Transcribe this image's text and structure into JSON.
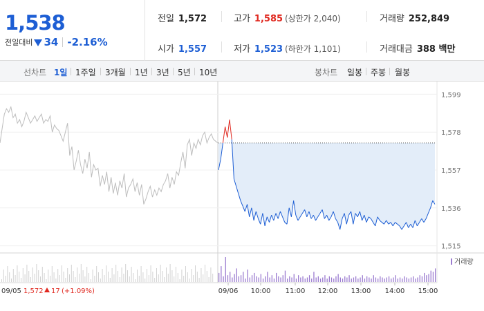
{
  "summary": {
    "price": "1,538",
    "change_label": "전일대비",
    "change_value": "34",
    "change_pct": "-2.16%",
    "direction": "down",
    "prev_close_label": "전일",
    "prev_close": "1,572",
    "open_label": "시가",
    "open": "1,557",
    "high_label": "고가",
    "high": "1,585",
    "upper_limit": "(상한가 2,040)",
    "low_label": "저가",
    "low": "1,523",
    "lower_limit": "(하한가 1,101)",
    "volume_label": "거래량",
    "volume": "252,849",
    "amount_label": "거래대금",
    "amount": "388 백만"
  },
  "toolbar": {
    "line_label": "선차트",
    "line_periods": [
      "1일",
      "1주일",
      "3개월",
      "1년",
      "3년",
      "5년",
      "10년"
    ],
    "active_period": "1일",
    "candle_label": "봉차트",
    "candle_periods": [
      "일봉",
      "주봉",
      "월봉"
    ]
  },
  "colors": {
    "up": "#e0281f",
    "down": "#1d5ed4",
    "fill": "#e3edf9",
    "prev_line": "#bdbdbd"
  },
  "chart_data": {
    "type": "line",
    "y_ticks": [
      "1,599",
      "1,578",
      "1,557",
      "1,536",
      "1,515"
    ],
    "ylim": [
      1511,
      1603
    ],
    "x_ticks": [
      "09/06",
      "10:00",
      "11:00",
      "12:00",
      "13:00",
      "14:00",
      "15:00"
    ],
    "volume_legend": "거래량",
    "prev_close_ref": 1572,
    "prev_day": {
      "label": "09/05",
      "close": "1,572",
      "change": "17",
      "change_pct": "(+1.09%)",
      "values": [
        1572,
        1580,
        1588,
        1591,
        1589,
        1592,
        1586,
        1588,
        1583,
        1585,
        1581,
        1584,
        1589,
        1586,
        1583,
        1585,
        1587,
        1584,
        1586,
        1588,
        1583,
        1585,
        1584,
        1587,
        1578,
        1582,
        1580,
        1579,
        1576,
        1573,
        1578,
        1583,
        1565,
        1570,
        1557,
        1562,
        1568,
        1560,
        1555,
        1563,
        1558,
        1567,
        1553,
        1560,
        1557,
        1558,
        1548,
        1554,
        1549,
        1556,
        1545,
        1553,
        1544,
        1550,
        1543,
        1551,
        1547,
        1555,
        1542,
        1547,
        1549,
        1552,
        1545,
        1550,
        1543,
        1549,
        1538,
        1541,
        1545,
        1548,
        1542,
        1546,
        1543,
        1547,
        1545,
        1549,
        1551,
        1555,
        1547,
        1553,
        1549,
        1556,
        1554,
        1561,
        1567,
        1558,
        1571,
        1574,
        1565,
        1572,
        1569,
        1574,
        1571,
        1576,
        1578,
        1572,
        1575,
        1577,
        1574,
        1573,
        1572
      ]
    },
    "today": {
      "values": [
        1557,
        1563,
        1572,
        1581,
        1575,
        1585,
        1574,
        1552,
        1548,
        1544,
        1540,
        1537,
        1534,
        1538,
        1531,
        1536,
        1529,
        1534,
        1530,
        1527,
        1533,
        1526,
        1531,
        1528,
        1532,
        1529,
        1533,
        1530,
        1534,
        1531,
        1528,
        1527,
        1536,
        1531,
        1540,
        1532,
        1529,
        1531,
        1533,
        1535,
        1531,
        1534,
        1530,
        1532,
        1529,
        1531,
        1533,
        1535,
        1530,
        1532,
        1529,
        1531,
        1534,
        1530,
        1528,
        1524,
        1530,
        1533,
        1527,
        1532,
        1534,
        1527,
        1533,
        1531,
        1534,
        1529,
        1532,
        1528,
        1531,
        1530,
        1528,
        1526,
        1531,
        1529,
        1528,
        1527,
        1529,
        1527,
        1528,
        1526,
        1528,
        1527,
        1526,
        1524,
        1526,
        1528,
        1525,
        1527,
        1525,
        1529,
        1526,
        1528,
        1530,
        1528,
        1530,
        1533,
        1536,
        1540,
        1538
      ],
      "volumes": [
        8,
        14,
        5,
        22,
        6,
        9,
        4,
        7,
        12,
        5,
        6,
        9,
        3,
        11,
        4,
        6,
        8,
        5,
        4,
        7,
        3,
        5,
        9,
        4,
        6,
        3,
        8,
        5,
        4,
        6,
        10,
        3,
        5,
        4,
        7,
        3,
        6,
        4,
        5,
        3,
        4,
        6,
        3,
        9,
        4,
        5,
        3,
        4,
        6,
        3,
        5,
        4,
        3,
        5,
        7,
        4,
        3,
        5,
        4,
        6,
        3,
        4,
        5,
        3,
        4,
        6,
        3,
        5,
        4,
        3,
        6,
        4,
        3,
        5,
        4,
        3,
        4,
        5,
        3,
        4,
        6,
        3,
        4,
        3,
        5,
        4,
        3,
        4,
        5,
        3,
        4,
        6,
        5,
        8,
        6,
        7,
        10,
        9,
        12
      ]
    }
  }
}
